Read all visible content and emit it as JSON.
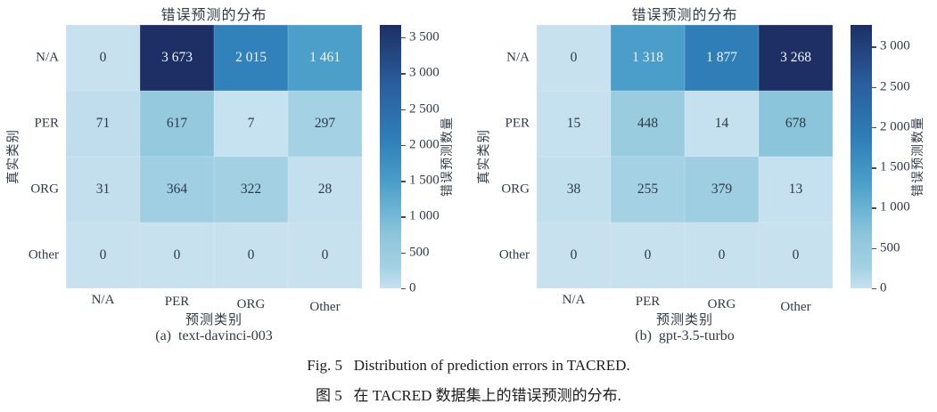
{
  "chart_data": [
    {
      "type": "heatmap",
      "title": "错误预测的分布",
      "xlabel": "预测类别",
      "ylabel": "真实类别",
      "colorbar_label": "错误预测数量",
      "subcaption": "(a)  text-davinci-003",
      "x_categories": [
        "N/A",
        "PER",
        "ORG",
        "Other"
      ],
      "y_categories": [
        "N/A",
        "PER",
        "ORG",
        "Other"
      ],
      "values": [
        [
          0,
          3673,
          2015,
          1461
        ],
        [
          71,
          617,
          7,
          297
        ],
        [
          31,
          364,
          322,
          28
        ],
        [
          0,
          0,
          0,
          0
        ]
      ],
      "vmax": 3673,
      "colorbar_ticks": [
        0,
        500,
        1000,
        1500,
        2000,
        2500,
        3000,
        3500
      ]
    },
    {
      "type": "heatmap",
      "title": "错误预测的分布",
      "xlabel": "预测类别",
      "ylabel": "真实类别",
      "colorbar_label": "错误预测数量",
      "subcaption": "(b)  gpt-3.5-turbo",
      "x_categories": [
        "N/A",
        "PER",
        "ORG",
        "Other"
      ],
      "y_categories": [
        "N/A",
        "PER",
        "ORG",
        "Other"
      ],
      "values": [
        [
          0,
          1318,
          1877,
          3268
        ],
        [
          15,
          448,
          14,
          678
        ],
        [
          38,
          255,
          379,
          13
        ],
        [
          0,
          0,
          0,
          0
        ]
      ],
      "vmax": 3268,
      "colorbar_ticks": [
        0,
        500,
        1000,
        1500,
        2000,
        2500,
        3000
      ]
    }
  ],
  "figure_caption": {
    "en": "Fig. 5   Distribution of prediction errors in TACRED.",
    "zh": "图 5   在 TACRED 数据集上的错误预测的分布."
  },
  "colors": {
    "text": "#2f3b47",
    "annot_dark": "#2e3a47",
    "annot_light": "#eef3f9",
    "tick_mark": "#4a4a4a",
    "colormap": [
      [
        0.0,
        "#c7e1ef"
      ],
      [
        0.08,
        "#a4d1e4"
      ],
      [
        0.2,
        "#8ec6dc"
      ],
      [
        0.4,
        "#4b9fc9"
      ],
      [
        0.56,
        "#2f80b9"
      ],
      [
        0.78,
        "#2a5d9c"
      ],
      [
        1.0,
        "#1d2f64"
      ]
    ]
  }
}
